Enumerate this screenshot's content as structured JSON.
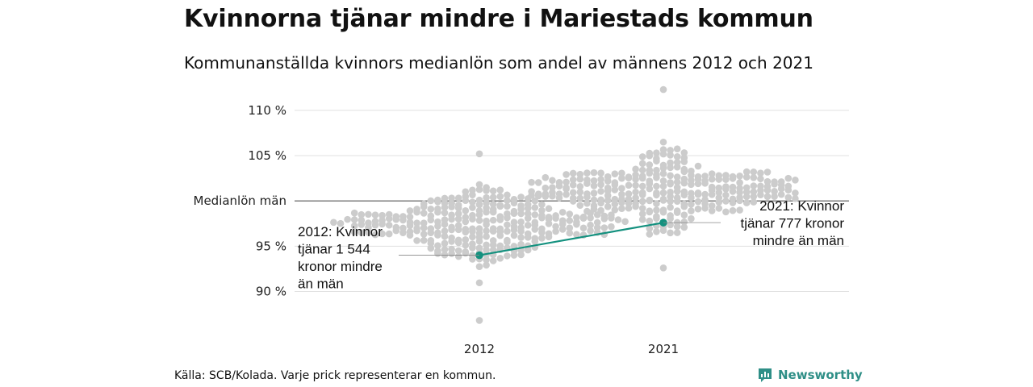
{
  "title": "Kvinnorna tjänar mindre i Mariestads kommun",
  "subtitle": "Kommunanställda kvinnors medianlön som andel av männens 2012 och 2021",
  "source": "Källa: SCB/Kolada. Varje prick representerar en kommun.",
  "brand": "Newsworthy",
  "colors": {
    "dots": "#cccccc",
    "highlight": "#14917f",
    "grid": "#e0e0e0",
    "reference_line": "#555555"
  },
  "chart_data": {
    "type": "scatter",
    "x_categories": [
      "2012",
      "2021"
    ],
    "ylim": [
      86,
      112
    ],
    "y_ticks": [
      {
        "value": 90,
        "label": "90 %"
      },
      {
        "value": 95,
        "label": "95 %"
      },
      {
        "value": 100,
        "label": "Medianlön män"
      },
      {
        "value": 105,
        "label": "105 %"
      },
      {
        "value": 110,
        "label": "110 %"
      }
    ],
    "reference_line": {
      "value": 100,
      "label": "Medianlön män"
    },
    "distributions": [
      {
        "category": "2012",
        "min": 86.8,
        "max": 105.2,
        "median": 97.2
      },
      {
        "category": "2021",
        "min": 92.6,
        "max": 112.3,
        "median": 101.2
      }
    ],
    "highlight_series": {
      "values": [
        {
          "x": "2012",
          "y": 94.0
        },
        {
          "x": "2021",
          "y": 97.6
        }
      ]
    },
    "annotations": [
      {
        "x": "2012",
        "lines": [
          "2012: Kvinnor",
          "tjänar 1 544",
          "kronor mindre",
          "än män"
        ]
      },
      {
        "x": "2021",
        "lines": [
          "2021: Kvinnor",
          "tjänar 777 kronor",
          "mindre än män"
        ]
      }
    ],
    "grid": true
  }
}
